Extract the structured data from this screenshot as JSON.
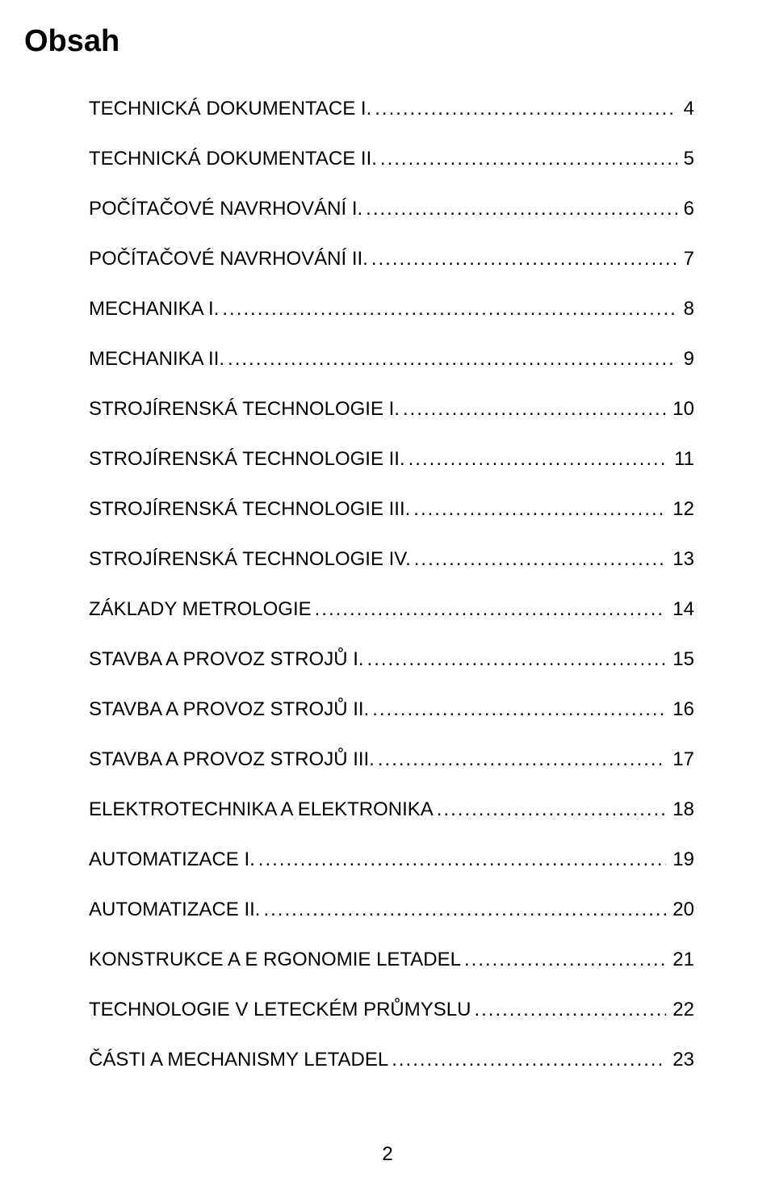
{
  "title": "Obsah",
  "page_number": "2",
  "font_family": "Arial",
  "text_color": "#000000",
  "background_color": "#ffffff",
  "title_fontsize": 38,
  "entry_fontsize": 24,
  "entries": [
    {
      "label": "TECHNICKÁ DOKUMENTACE I.",
      "page": "4"
    },
    {
      "label": "TECHNICKÁ DOKUMENTACE II.",
      "page": "5"
    },
    {
      "label": "POČÍTAČOVÉ NAVRHOVÁNÍ I.",
      "page": "6"
    },
    {
      "label": "POČÍTAČOVÉ NAVRHOVÁNÍ II.",
      "page": "7"
    },
    {
      "label": "MECHANIKA I.",
      "page": "8"
    },
    {
      "label": "MECHANIKA II.",
      "page": "9"
    },
    {
      "label": "STROJÍRENSKÁ TECHNOLOGIE I.",
      "page": "10"
    },
    {
      "label": "STROJÍRENSKÁ TECHNOLOGIE II.",
      "page": "11"
    },
    {
      "label": "STROJÍRENSKÁ TECHNOLOGIE III.",
      "page": "12"
    },
    {
      "label": "STROJÍRENSKÁ TECHNOLOGIE IV.",
      "page": "13"
    },
    {
      "label": "ZÁKLADY METROLOGIE",
      "page": "14"
    },
    {
      "label": "STAVBA A PROVOZ STROJŮ I.",
      "page": "15"
    },
    {
      "label": "STAVBA A PROVOZ STROJŮ II.",
      "page": "16"
    },
    {
      "label": "STAVBA A PROVOZ STROJŮ III.",
      "page": "17"
    },
    {
      "label": "ELEKTROTECHNIKA A ELEKTRONIKA",
      "page": "18"
    },
    {
      "label": "AUTOMATIZACE I.",
      "page": "19"
    },
    {
      "label": "AUTOMATIZACE II.",
      "page": "20"
    },
    {
      "label": "KONSTRUKCE A E RGONOMIE LETADEL",
      "page": "21"
    },
    {
      "label": "TECHNOLOGIE V LETECKÉM PRŮMYSLU",
      "page": "22"
    },
    {
      "label": "ČÁSTI A MECHANISMY LETADEL",
      "page": "23"
    }
  ]
}
